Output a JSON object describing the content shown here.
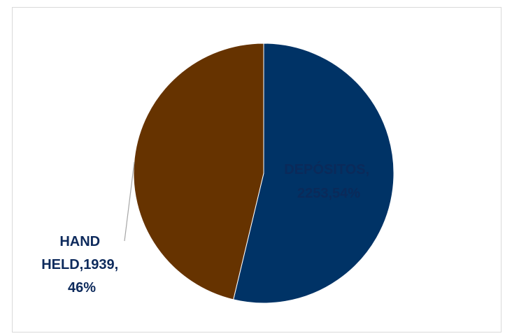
{
  "chart_data": {
    "type": "pie",
    "slices": [
      {
        "label": "DEPÓSITOS",
        "value": 2253,
        "percent": "54%",
        "color": "#003366",
        "label_lines": [
          "DEPÓSITOS,",
          "2253,54%"
        ]
      },
      {
        "label": "HAND HELD",
        "value": 1939,
        "percent": "46%",
        "color": "#663300",
        "label_lines": [
          "HAND",
          "HELD,1939,",
          "46%"
        ]
      }
    ],
    "label_colors": {
      "inside": "#0a2a5a",
      "outside": "#0d2a5c"
    },
    "leader_line_color": "#a6a6a6"
  }
}
